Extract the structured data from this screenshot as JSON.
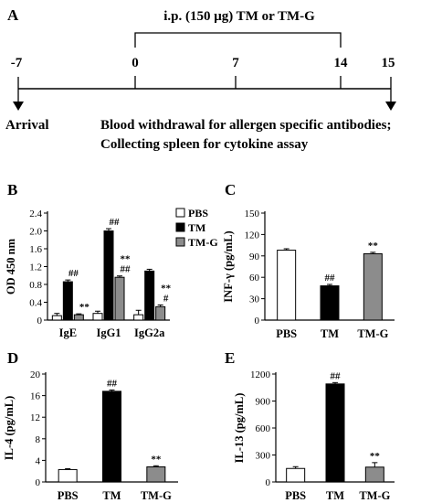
{
  "panels": {
    "A": "A",
    "B": "B",
    "C": "C",
    "D": "D",
    "E": "E"
  },
  "timeline": {
    "header": "i.p. (150 μg) TM or TM-G",
    "days": [
      "-7",
      "0",
      "7",
      "14",
      "15"
    ],
    "arrival": "Arrival",
    "note_line1": "Blood withdrawal for allergen specific antibodies;",
    "note_line2": "Collecting spleen for cytokine assay"
  },
  "colors": {
    "PBS": "#ffffff",
    "TM": "#000000",
    "TM-G": "#8c8c8c"
  },
  "chart_data": [
    {
      "panel": "B",
      "type": "bar",
      "categories": [
        "IgE",
        "IgG1",
        "IgG2a"
      ],
      "series": [
        {
          "name": "PBS",
          "values": [
            0.1,
            0.15,
            0.12
          ],
          "errors": [
            0.05,
            0.05,
            0.1
          ]
        },
        {
          "name": "TM",
          "values": [
            0.86,
            2.0,
            1.1
          ],
          "errors": [
            0.04,
            0.05,
            0.04
          ]
        },
        {
          "name": "TM-G",
          "values": [
            0.12,
            0.96,
            0.3
          ],
          "errors": [
            0.02,
            0.03,
            0.04
          ]
        }
      ],
      "ylabel": "OD 450 nm",
      "ylim": [
        0,
        2.4
      ],
      "yticks": [
        "0",
        "0.4",
        "0.8",
        "1.2",
        "1.6",
        "2.0",
        "2.4"
      ],
      "annotations": [
        {
          "category": "IgE",
          "series": "TM",
          "text": "##"
        },
        {
          "category": "IgE",
          "series": "TM-G",
          "text": "**"
        },
        {
          "category": "IgG1",
          "series": "TM",
          "text": "##"
        },
        {
          "category": "IgG1",
          "series": "TM-G",
          "text": "##"
        },
        {
          "category": "IgG1",
          "series": "TM-G",
          "text": "**"
        },
        {
          "category": "IgG2a",
          "series": "TM-G",
          "text": "#"
        },
        {
          "category": "IgG2a",
          "series": "TM-G",
          "text": "**"
        }
      ],
      "legend": [
        "PBS",
        "TM",
        "TM-G"
      ],
      "legend_position": "top-right"
    },
    {
      "panel": "C",
      "type": "bar",
      "categories": [
        "PBS",
        "TM",
        "TM-G"
      ],
      "values": [
        98,
        48,
        93
      ],
      "errors": [
        2,
        2,
        2
      ],
      "ylabel": "INF-γ (pg/mL)",
      "ylim": [
        0,
        150
      ],
      "yticks": [
        "0",
        "30",
        "60",
        "90",
        "120",
        "150"
      ],
      "annotations": [
        {
          "category": "TM",
          "text": "##"
        },
        {
          "category": "TM-G",
          "text": "**"
        }
      ]
    },
    {
      "panel": "D",
      "type": "bar",
      "categories": [
        "PBS",
        "TM",
        "TM-G"
      ],
      "values": [
        2.3,
        16.8,
        2.8
      ],
      "errors": [
        0.15,
        0.25,
        0.2
      ],
      "ylabel": "IL-4 (pg/mL)",
      "ylim": [
        0,
        20
      ],
      "yticks": [
        "0",
        "4",
        "8",
        "12",
        "16",
        "20"
      ],
      "annotations": [
        {
          "category": "TM",
          "text": "##"
        },
        {
          "category": "TM-G",
          "text": "**"
        }
      ]
    },
    {
      "panel": "E",
      "type": "bar",
      "categories": [
        "PBS",
        "TM",
        "TM-G"
      ],
      "values": [
        150,
        1090,
        165
      ],
      "errors": [
        20,
        15,
        50
      ],
      "ylabel": "IL-13 (pg/mL)",
      "ylim": [
        0,
        1200
      ],
      "yticks": [
        "0",
        "300",
        "600",
        "900",
        "1200"
      ],
      "annotations": [
        {
          "category": "TM",
          "text": "##"
        },
        {
          "category": "TM-G",
          "text": "**"
        }
      ]
    }
  ]
}
